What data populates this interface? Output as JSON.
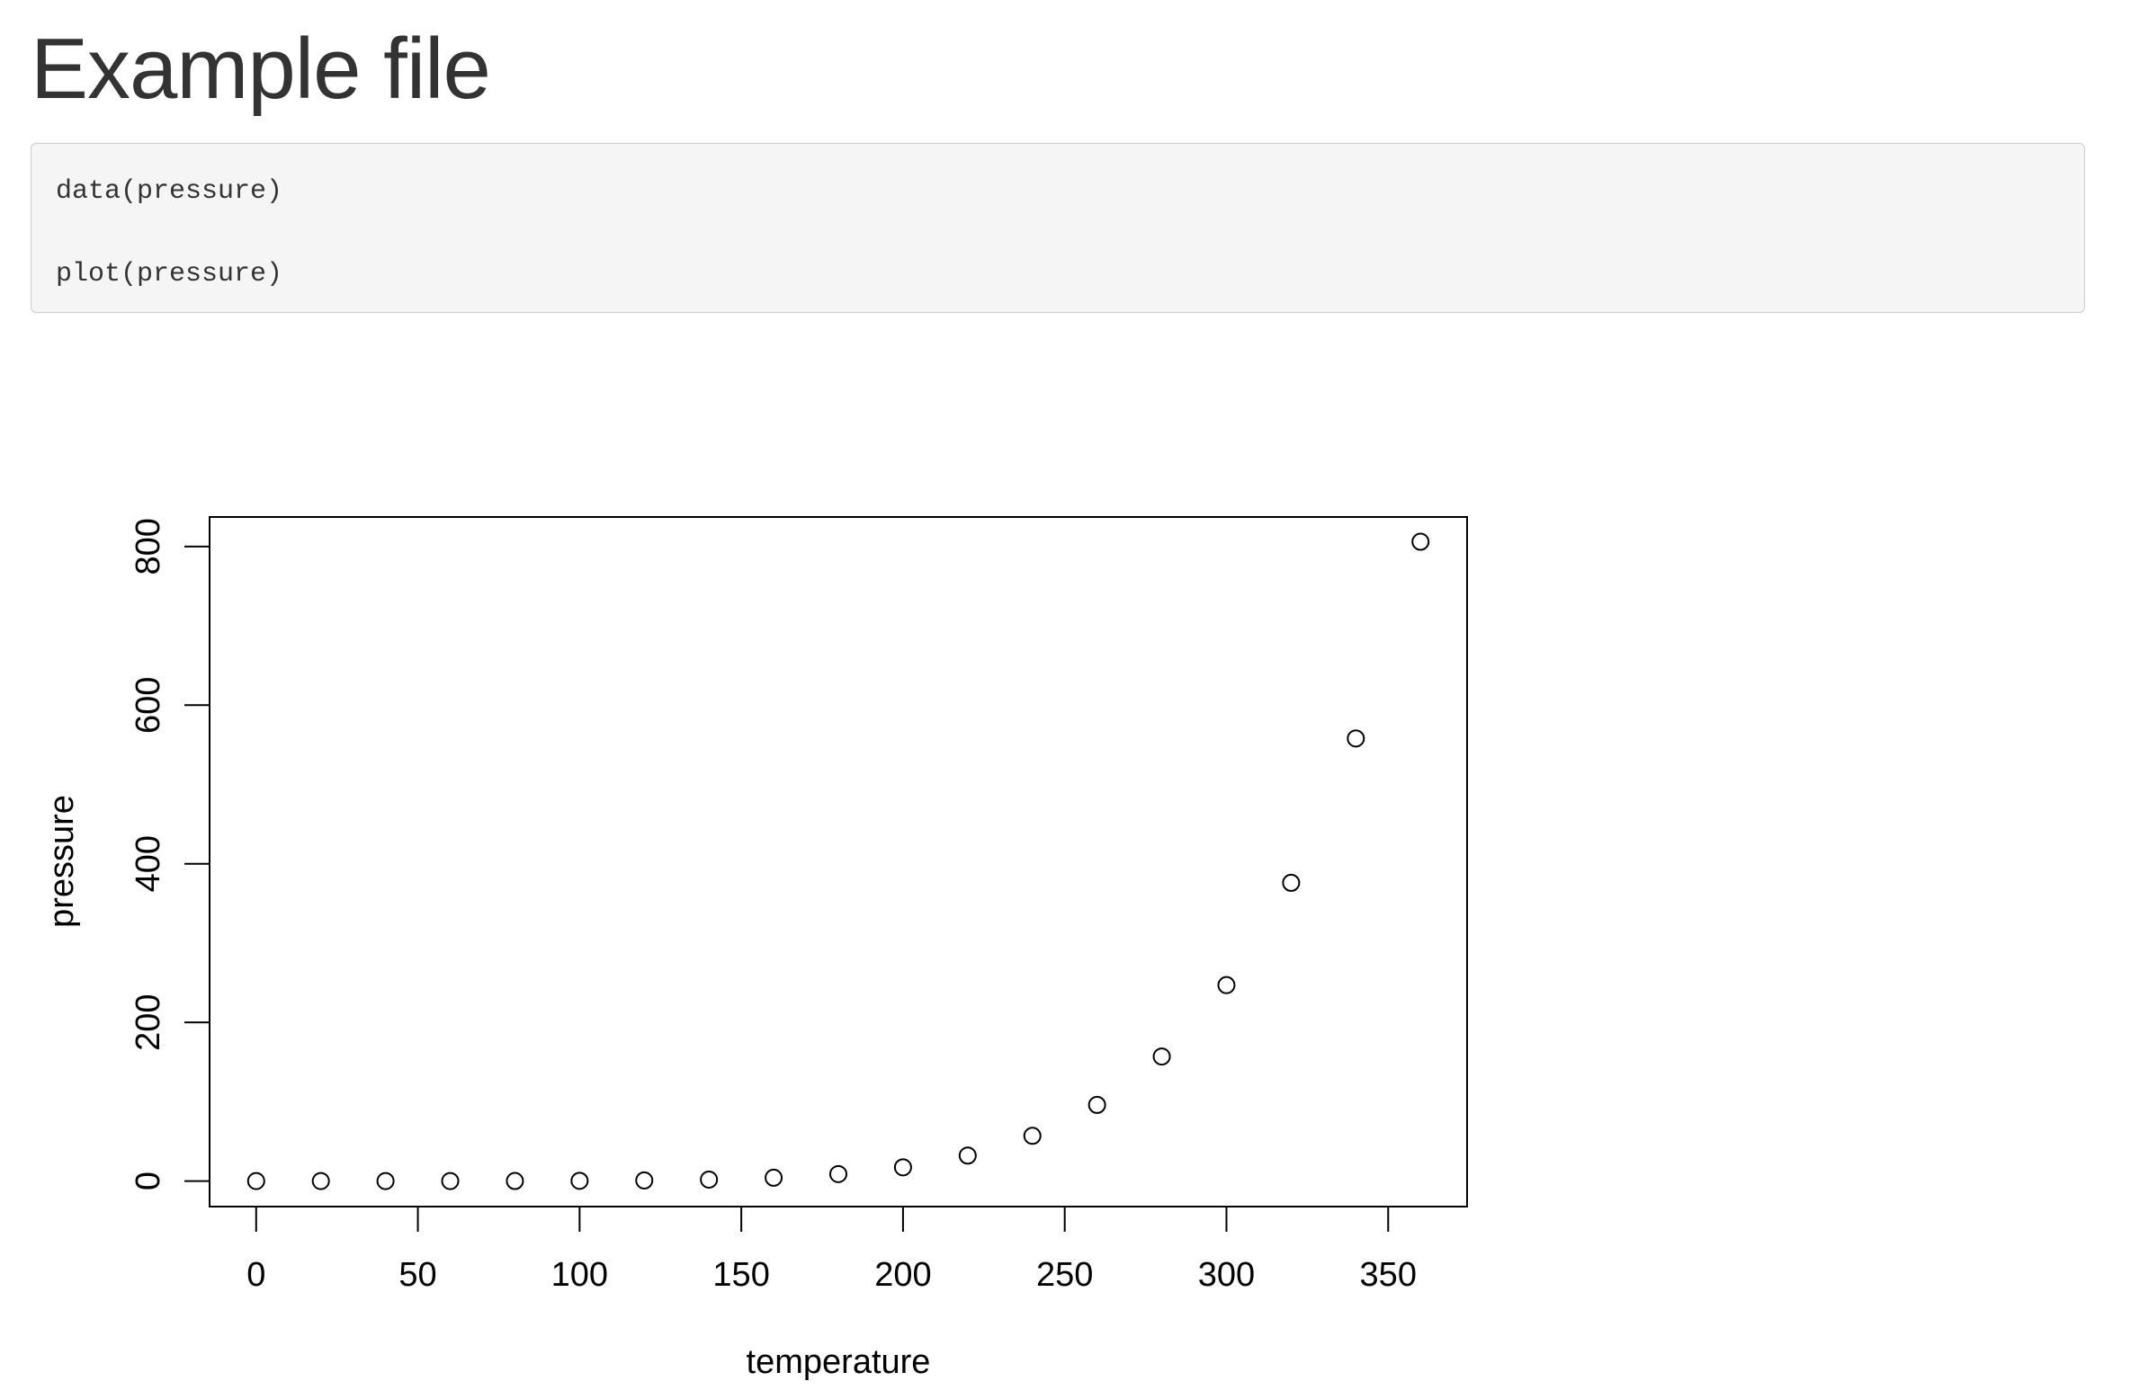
{
  "page": {
    "title": "Example file"
  },
  "code": {
    "lines": [
      "data(pressure)",
      "plot(pressure)"
    ]
  },
  "chart_data": {
    "type": "scatter",
    "title": "",
    "xlabel": "temperature",
    "ylabel": "pressure",
    "xlim": [
      -14.4,
      374.4
    ],
    "ylim": [
      -32.2,
      837.2
    ],
    "x_ticks": [
      0,
      50,
      100,
      150,
      200,
      250,
      300,
      350
    ],
    "y_ticks": [
      0,
      200,
      400,
      600,
      800
    ],
    "grid": false,
    "marker": "open-circle",
    "x": [
      0,
      20,
      40,
      60,
      80,
      100,
      120,
      140,
      160,
      180,
      200,
      220,
      240,
      260,
      280,
      300,
      320,
      340,
      360
    ],
    "y": [
      0.0002,
      0.0012,
      0.006,
      0.03,
      0.09,
      0.27,
      0.75,
      1.85,
      4.2,
      8.8,
      17.3,
      32.1,
      57,
      96,
      157,
      247,
      376,
      558,
      806
    ]
  }
}
